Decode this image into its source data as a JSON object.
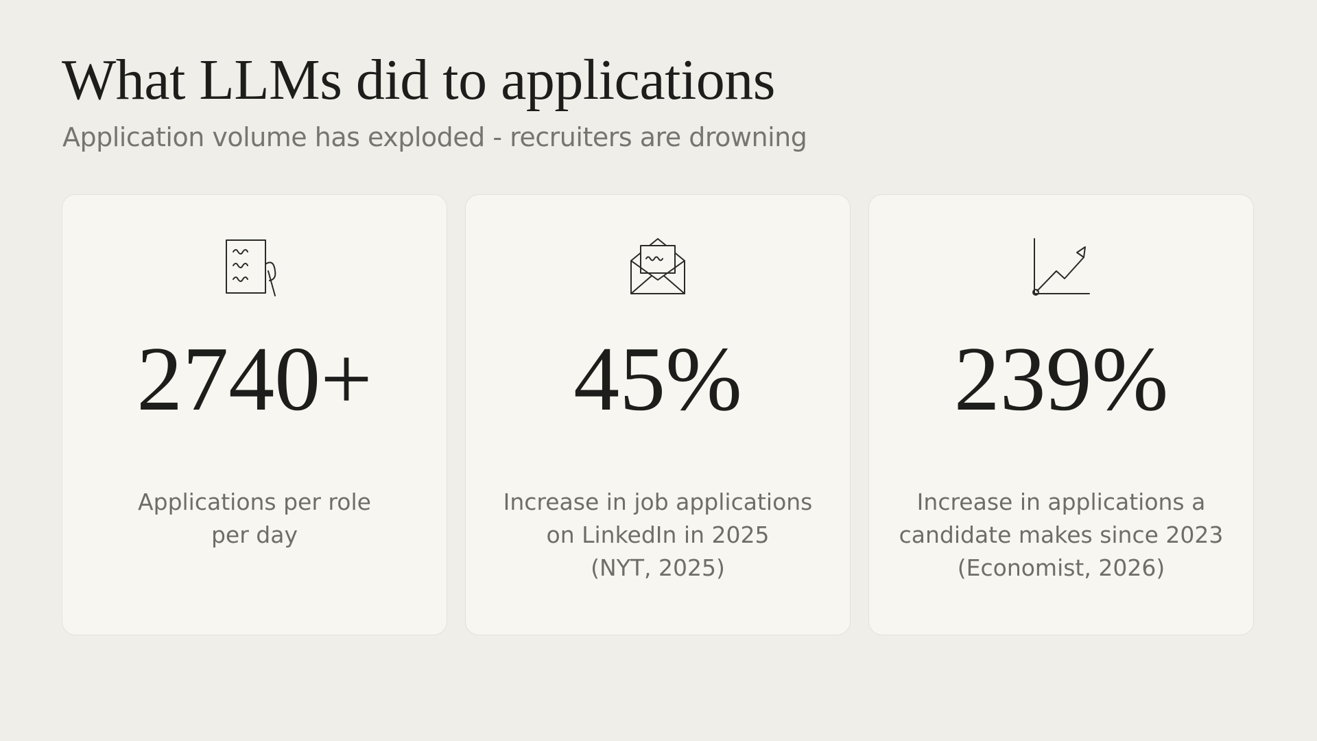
{
  "header": {
    "title": "What LLMs did to applications",
    "subtitle": "Application volume has exploded - recruiters are drowning"
  },
  "cards": [
    {
      "stat": "2740+",
      "lines": [
        "Applications per role",
        "per day"
      ]
    },
    {
      "stat": "45%",
      "lines": [
        "Increase in job applications",
        "on LinkedIn in 2025",
        "(NYT, 2025)"
      ]
    },
    {
      "stat": "239%",
      "lines": [
        "Increase in applications a",
        "candidate makes since 2023",
        "(Economist, 2026)"
      ]
    }
  ]
}
